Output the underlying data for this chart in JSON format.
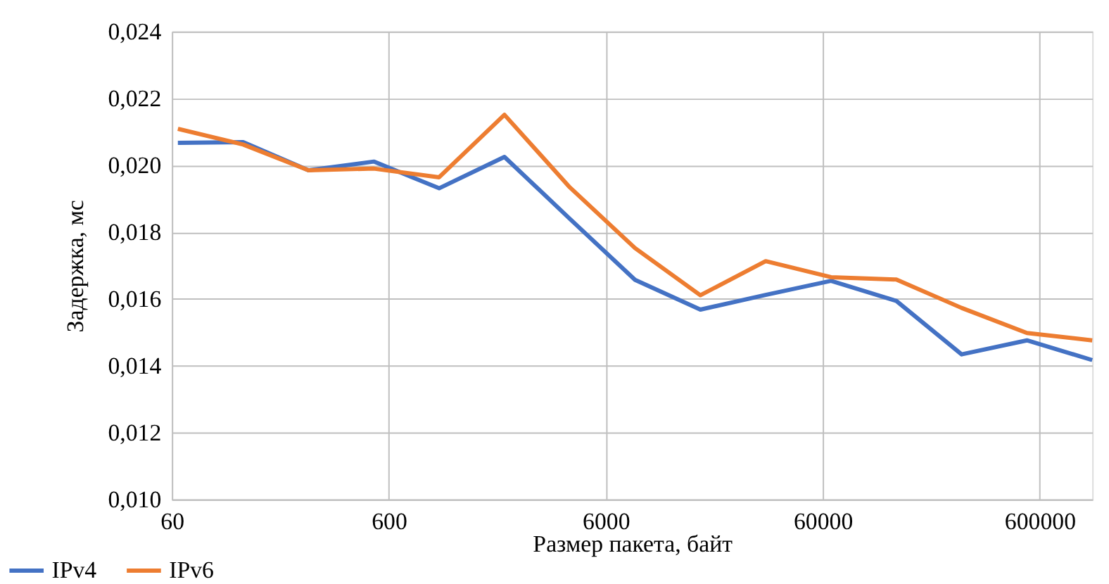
{
  "chart_data": {
    "type": "line",
    "xlabel": "Размер пакета, байт",
    "ylabel": "Задержка, мс",
    "x": [
      64,
      128,
      256,
      512,
      1024,
      2048,
      4096,
      8192,
      16384,
      32768,
      65536,
      131072,
      262144,
      524288,
      1048576
    ],
    "series": [
      {
        "name": "IPv4",
        "color": "#4472c4",
        "values": [
          0.02067,
          0.02069,
          0.01985,
          0.02011,
          0.01931,
          0.02025,
          0.0184,
          0.01657,
          0.01568,
          0.01612,
          0.01654,
          0.01594,
          0.01434,
          0.01476,
          0.01417
        ]
      },
      {
        "name": "IPv6",
        "color": "#ed7d31",
        "values": [
          0.02109,
          0.02062,
          0.01985,
          0.0199,
          0.01964,
          0.02151,
          0.01934,
          0.01752,
          0.01611,
          0.01713,
          0.01665,
          0.01658,
          0.01573,
          0.01498,
          0.01476
        ]
      }
    ],
    "log": "x",
    "xlim": [
      60,
      1048576
    ],
    "xticks": [
      60,
      600,
      6000,
      60000,
      600000
    ],
    "ylim": [
      0.01,
      0.024
    ],
    "yticks": [
      {
        "value": 0.01,
        "label": "0,010"
      },
      {
        "value": 0.012,
        "label": "0,012"
      },
      {
        "value": 0.014,
        "label": "0,014"
      },
      {
        "value": 0.016,
        "label": "0,016"
      },
      {
        "value": 0.018,
        "label": "0,018"
      },
      {
        "value": 0.02,
        "label": "0,020"
      },
      {
        "value": 0.022,
        "label": "0,022"
      },
      {
        "value": 0.024,
        "label": "0,024"
      }
    ],
    "grid": true,
    "legend": "bottom left",
    "marker": "none",
    "line_style": "solid"
  }
}
